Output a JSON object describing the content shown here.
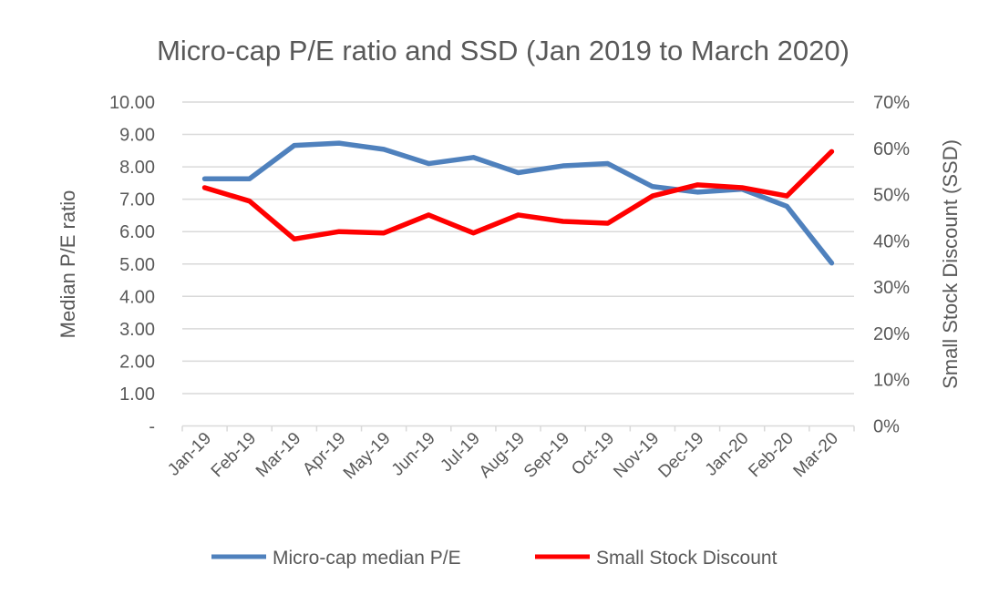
{
  "chart_data": {
    "type": "line",
    "title": "Micro-cap P/E ratio and SSD (Jan 2019 to March 2020)",
    "categories": [
      "Jan-19",
      "Feb-19",
      "Mar-19",
      "Apr-19",
      "May-19",
      "Jun-19",
      "Jul-19",
      "Aug-19",
      "Sep-19",
      "Oct-19",
      "Nov-19",
      "Dec-19",
      "Jan-20",
      "Feb-20",
      "Mar-20"
    ],
    "ylabel": "Median P/E ratio",
    "y2label": "Small Stock Discount (SSD)",
    "ylim": [
      0,
      10
    ],
    "y2lim": [
      0,
      70
    ],
    "yticks": [
      "-",
      "1.00",
      "2.00",
      "3.00",
      "4.00",
      "5.00",
      "6.00",
      "7.00",
      "8.00",
      "9.00",
      "10.00"
    ],
    "y2ticks": [
      "0%",
      "10%",
      "20%",
      "30%",
      "40%",
      "50%",
      "60%",
      "70%"
    ],
    "grid": true,
    "legend_position": "bottom",
    "series": [
      {
        "name": "Micro-cap median P/E",
        "axis": "left",
        "color": "#4f81bd",
        "values": [
          7.63,
          7.63,
          8.66,
          8.73,
          8.54,
          8.1,
          8.29,
          7.82,
          8.03,
          8.1,
          7.39,
          7.22,
          7.31,
          6.78,
          5.03
        ]
      },
      {
        "name": "Small Stock Discount",
        "axis": "right",
        "color": "#ff0000",
        "values": [
          51.5,
          48.6,
          40.4,
          42.0,
          41.7,
          45.6,
          41.7,
          45.6,
          44.2,
          43.8,
          49.7,
          52.1,
          51.5,
          49.7,
          59.3
        ]
      }
    ]
  }
}
